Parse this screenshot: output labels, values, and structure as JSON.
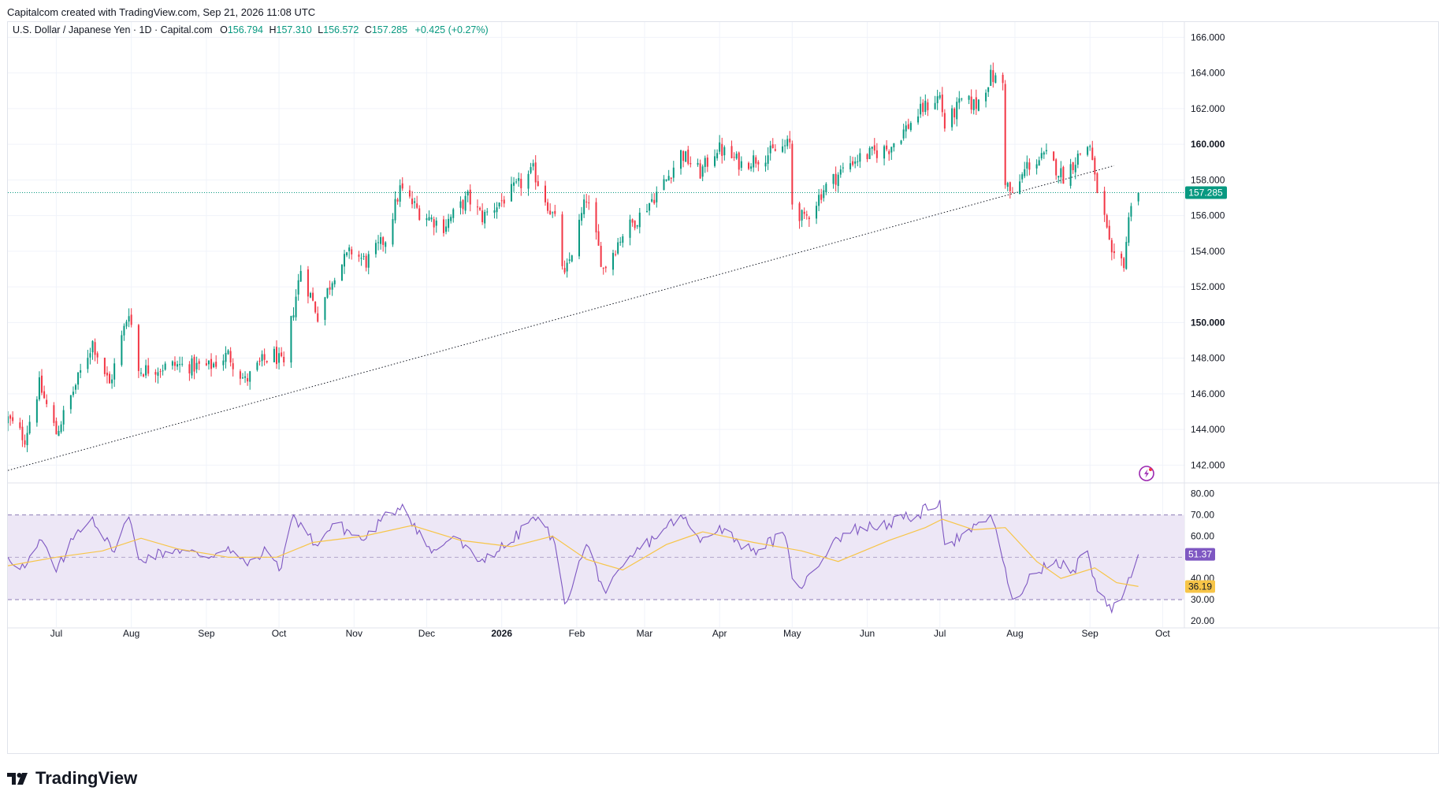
{
  "header": {
    "attribution": "Capitalcom created with TradingView.com, Sep 21, 2026 11:08 UTC"
  },
  "brand": {
    "name": "TradingView"
  },
  "legend": {
    "symbol": "U.S. Dollar / Japanese Yen · 1D · Capital.com",
    "open_label": "O",
    "open": "156.794",
    "high_label": "H",
    "high": "157.310",
    "low_label": "L",
    "low": "156.572",
    "close_label": "C",
    "close": "157.285",
    "change": "+0.425 (+0.27%)"
  },
  "colors": {
    "up": "#089981",
    "down": "#f23645",
    "rsi": "#7e57c2",
    "rsi_ma": "#f7c548",
    "band_fill": "#ede7f6",
    "grid": "#f0f3fa",
    "price_line": "#089981",
    "trendline": "#131722"
  },
  "icons": {
    "alert": "lightning-bolt-icon",
    "logo": "tradingview-logo-icon"
  },
  "chart_data": [
    {
      "type": "candlestick",
      "title": "U.S. Dollar / Japanese Yen · 1D · Capital.com",
      "ylim": [
        141,
        166.5
      ],
      "y_ticks": [
        "166.000",
        "164.000",
        "162.000",
        "160.000",
        "158.000",
        "156.000",
        "154.000",
        "152.000",
        "150.000",
        "148.000",
        "146.000",
        "144.000",
        "142.000"
      ],
      "bold_ticks": [
        "160.000",
        "150.000"
      ],
      "x_ticks": [
        {
          "label": "Jul",
          "date": "2025-07-01"
        },
        {
          "label": "Aug",
          "date": "2025-08-01"
        },
        {
          "label": "Sep",
          "date": "2025-09-01"
        },
        {
          "label": "Oct",
          "date": "2025-10-01"
        },
        {
          "label": "Nov",
          "date": "2025-11-01"
        },
        {
          "label": "Dec",
          "date": "2025-12-01"
        },
        {
          "label": "2026",
          "date": "2026-01-01",
          "bold": true
        },
        {
          "label": "Feb",
          "date": "2026-02-01"
        },
        {
          "label": "Mar",
          "date": "2026-03-01"
        },
        {
          "label": "Apr",
          "date": "2026-04-01"
        },
        {
          "label": "May",
          "date": "2026-05-01"
        },
        {
          "label": "Jun",
          "date": "2026-06-01"
        },
        {
          "label": "Jul",
          "date": "2026-07-01"
        },
        {
          "label": "Aug",
          "date": "2026-08-01"
        },
        {
          "label": "Sep",
          "date": "2026-09-01"
        },
        {
          "label": "Oct",
          "date": "2026-10-01"
        }
      ],
      "date_range": [
        "2025-06-11",
        "2026-10-10"
      ],
      "last_price": "157.285",
      "path_closes": [
        {
          "date": "2025-06-11",
          "close": 144.6
        },
        {
          "date": "2025-06-18",
          "close": 143.5
        },
        {
          "date": "2025-06-24",
          "close": 146.5
        },
        {
          "date": "2025-07-01",
          "close": 143.8
        },
        {
          "date": "2025-07-09",
          "close": 146.5
        },
        {
          "date": "2025-07-16",
          "close": 148.9
        },
        {
          "date": "2025-07-23",
          "close": 146.5
        },
        {
          "date": "2025-07-31",
          "close": 150.7
        },
        {
          "date": "2025-08-04",
          "close": 147.3
        },
        {
          "date": "2025-08-19",
          "close": 147.6
        },
        {
          "date": "2025-09-02",
          "close": 147.5
        },
        {
          "date": "2025-09-10",
          "close": 148.2
        },
        {
          "date": "2025-09-17",
          "close": 146.7
        },
        {
          "date": "2025-09-24",
          "close": 147.8
        },
        {
          "date": "2025-09-29",
          "close": 148.2
        },
        {
          "date": "2025-10-03",
          "close": 147.5
        },
        {
          "date": "2025-10-06",
          "close": 150.0
        },
        {
          "date": "2025-10-10",
          "close": 153.0
        },
        {
          "date": "2025-10-17",
          "close": 150.4
        },
        {
          "date": "2025-10-24",
          "close": 152.8
        },
        {
          "date": "2025-10-31",
          "close": 154.0
        },
        {
          "date": "2025-11-06",
          "close": 153.4
        },
        {
          "date": "2025-11-14",
          "close": 154.7
        },
        {
          "date": "2025-11-20",
          "close": 157.5
        },
        {
          "date": "2025-11-28",
          "close": 156.2
        },
        {
          "date": "2025-12-08",
          "close": 155.4
        },
        {
          "date": "2025-12-18",
          "close": 157.0
        },
        {
          "date": "2025-12-24",
          "close": 155.9
        },
        {
          "date": "2026-01-09",
          "close": 157.8
        },
        {
          "date": "2026-01-14",
          "close": 158.5
        },
        {
          "date": "2026-01-23",
          "close": 155.7
        },
        {
          "date": "2026-01-27",
          "close": 152.5
        },
        {
          "date": "2026-02-05",
          "close": 157.0
        },
        {
          "date": "2026-02-12",
          "close": 153.0
        },
        {
          "date": "2026-02-20",
          "close": 155.0
        },
        {
          "date": "2026-02-27",
          "close": 156.0
        },
        {
          "date": "2026-03-10",
          "close": 158.0
        },
        {
          "date": "2026-03-16",
          "close": 159.5
        },
        {
          "date": "2026-03-24",
          "close": 158.4
        },
        {
          "date": "2026-03-31",
          "close": 159.8
        },
        {
          "date": "2026-04-10",
          "close": 158.9
        },
        {
          "date": "2026-04-22",
          "close": 159.5
        },
        {
          "date": "2026-04-30",
          "close": 160.0
        },
        {
          "date": "2026-05-01",
          "close": 156.7
        },
        {
          "date": "2026-05-06",
          "close": 155.7
        },
        {
          "date": "2026-05-14",
          "close": 157.5
        },
        {
          "date": "2026-05-26",
          "close": 159.1
        },
        {
          "date": "2026-06-10",
          "close": 159.8
        },
        {
          "date": "2026-06-24",
          "close": 162.0
        },
        {
          "date": "2026-07-01",
          "close": 162.7
        },
        {
          "date": "2026-07-03",
          "close": 161.0
        },
        {
          "date": "2026-07-10",
          "close": 162.4
        },
        {
          "date": "2026-07-16",
          "close": 162.2
        },
        {
          "date": "2026-07-22",
          "close": 163.8
        },
        {
          "date": "2026-07-27",
          "close": 163.4
        },
        {
          "date": "2026-07-28",
          "close": 158.0
        },
        {
          "date": "2026-07-31",
          "close": 157.0
        },
        {
          "date": "2026-08-06",
          "close": 158.8
        },
        {
          "date": "2026-08-14",
          "close": 159.3
        },
        {
          "date": "2026-08-21",
          "close": 158.2
        },
        {
          "date": "2026-08-28",
          "close": 159.5
        },
        {
          "date": "2026-09-01",
          "close": 160.0
        },
        {
          "date": "2026-09-03",
          "close": 158.0
        },
        {
          "date": "2026-09-07",
          "close": 155.8
        },
        {
          "date": "2026-09-10",
          "close": 153.5
        },
        {
          "date": "2026-09-15",
          "close": 153.4
        },
        {
          "date": "2026-09-18",
          "close": 156.9
        },
        {
          "date": "2026-09-21",
          "close": 157.285
        }
      ],
      "trendline": {
        "from": {
          "date": "2025-06-11",
          "value": 141.7
        },
        "to": {
          "date": "2026-09-11",
          "value": 158.8
        }
      }
    },
    {
      "type": "line",
      "title": "RSI",
      "ylim": [
        17,
        84
      ],
      "y_ticks": [
        "80.00",
        "70.00",
        "60.00",
        "50.00",
        "40.00",
        "30.00",
        "20.00"
      ],
      "band": [
        30,
        70
      ],
      "midline": 50,
      "series": [
        {
          "key": "rsi",
          "last": "51.37",
          "points": [
            {
              "date": "2025-06-11",
              "value": 50
            },
            {
              "date": "2025-06-18",
              "value": 45
            },
            {
              "date": "2025-06-25",
              "value": 58
            },
            {
              "date": "2025-07-01",
              "value": 43
            },
            {
              "date": "2025-07-10",
              "value": 63
            },
            {
              "date": "2025-07-16",
              "value": 69
            },
            {
              "date": "2025-07-24",
              "value": 53
            },
            {
              "date": "2025-07-31",
              "value": 69
            },
            {
              "date": "2025-08-04",
              "value": 49
            },
            {
              "date": "2025-08-20",
              "value": 54
            },
            {
              "date": "2025-09-01",
              "value": 50
            },
            {
              "date": "2025-09-10",
              "value": 55
            },
            {
              "date": "2025-09-18",
              "value": 46
            },
            {
              "date": "2025-09-26",
              "value": 53
            },
            {
              "date": "2025-10-02",
              "value": 45
            },
            {
              "date": "2025-10-07",
              "value": 70
            },
            {
              "date": "2025-10-16",
              "value": 56
            },
            {
              "date": "2025-10-24",
              "value": 66
            },
            {
              "date": "2025-11-05",
              "value": 58
            },
            {
              "date": "2025-11-12",
              "value": 67
            },
            {
              "date": "2025-11-21",
              "value": 75
            },
            {
              "date": "2025-12-03",
              "value": 52
            },
            {
              "date": "2025-12-12",
              "value": 60
            },
            {
              "date": "2025-12-22",
              "value": 48
            },
            {
              "date": "2026-01-05",
              "value": 57
            },
            {
              "date": "2026-01-14",
              "value": 69
            },
            {
              "date": "2026-01-22",
              "value": 60
            },
            {
              "date": "2026-01-27",
              "value": 28
            },
            {
              "date": "2026-02-05",
              "value": 56
            },
            {
              "date": "2026-02-13",
              "value": 33
            },
            {
              "date": "2026-02-25",
              "value": 52
            },
            {
              "date": "2026-03-10",
              "value": 64
            },
            {
              "date": "2026-03-16",
              "value": 70
            },
            {
              "date": "2026-03-24",
              "value": 57
            },
            {
              "date": "2026-04-01",
              "value": 65
            },
            {
              "date": "2026-04-14",
              "value": 53
            },
            {
              "date": "2026-04-28",
              "value": 60
            },
            {
              "date": "2026-05-01",
              "value": 40
            },
            {
              "date": "2026-05-06",
              "value": 37
            },
            {
              "date": "2026-05-18",
              "value": 58
            },
            {
              "date": "2026-05-26",
              "value": 63
            },
            {
              "date": "2026-06-10",
              "value": 66
            },
            {
              "date": "2026-06-22",
              "value": 70
            },
            {
              "date": "2026-07-01",
              "value": 77
            },
            {
              "date": "2026-07-03",
              "value": 56
            },
            {
              "date": "2026-07-14",
              "value": 62
            },
            {
              "date": "2026-07-22",
              "value": 70
            },
            {
              "date": "2026-07-28",
              "value": 45
            },
            {
              "date": "2026-08-01",
              "value": 23
            },
            {
              "date": "2026-08-07",
              "value": 42
            },
            {
              "date": "2026-08-17",
              "value": 47
            },
            {
              "date": "2026-08-25",
              "value": 44
            },
            {
              "date": "2026-08-31",
              "value": 53
            },
            {
              "date": "2026-09-04",
              "value": 34
            },
            {
              "date": "2026-09-10",
              "value": 24
            },
            {
              "date": "2026-09-14",
              "value": 30
            },
            {
              "date": "2026-09-21",
              "value": 51.37
            }
          ]
        },
        {
          "key": "rsi_ma",
          "last": "36.19",
          "points": [
            {
              "date": "2025-06-11",
              "value": 46
            },
            {
              "date": "2025-07-01",
              "value": 50
            },
            {
              "date": "2025-07-20",
              "value": 53
            },
            {
              "date": "2025-08-05",
              "value": 59
            },
            {
              "date": "2025-08-20",
              "value": 54
            },
            {
              "date": "2025-09-10",
              "value": 50
            },
            {
              "date": "2025-09-30",
              "value": 50
            },
            {
              "date": "2025-10-15",
              "value": 57
            },
            {
              "date": "2025-11-05",
              "value": 60
            },
            {
              "date": "2025-11-25",
              "value": 65
            },
            {
              "date": "2025-12-15",
              "value": 58
            },
            {
              "date": "2026-01-05",
              "value": 55
            },
            {
              "date": "2026-01-22",
              "value": 60
            },
            {
              "date": "2026-02-05",
              "value": 49
            },
            {
              "date": "2026-02-20",
              "value": 44
            },
            {
              "date": "2026-03-10",
              "value": 56
            },
            {
              "date": "2026-03-25",
              "value": 62
            },
            {
              "date": "2026-04-15",
              "value": 57
            },
            {
              "date": "2026-05-05",
              "value": 53
            },
            {
              "date": "2026-05-20",
              "value": 48
            },
            {
              "date": "2026-06-10",
              "value": 58
            },
            {
              "date": "2026-06-25",
              "value": 64
            },
            {
              "date": "2026-07-02",
              "value": 68
            },
            {
              "date": "2026-07-15",
              "value": 63
            },
            {
              "date": "2026-07-28",
              "value": 64
            },
            {
              "date": "2026-08-10",
              "value": 48
            },
            {
              "date": "2026-08-20",
              "value": 40
            },
            {
              "date": "2026-09-03",
              "value": 45
            },
            {
              "date": "2026-09-12",
              "value": 38
            },
            {
              "date": "2026-09-21",
              "value": 36.19
            }
          ]
        }
      ]
    }
  ]
}
